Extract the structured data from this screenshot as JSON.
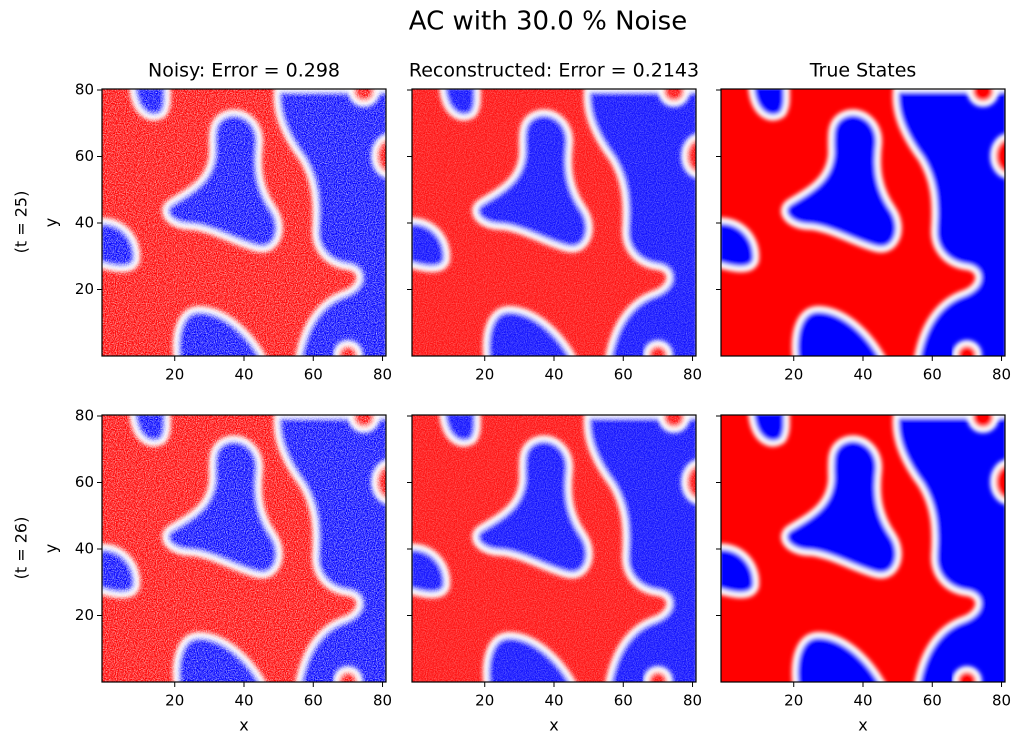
{
  "title": "AC with 30.0 % Noise",
  "row_labels": [
    "(t = 25)",
    "(t = 26)"
  ],
  "chart_data": [
    {
      "type": "heatmap",
      "title": "Noisy: Error = 0.298",
      "ylabel": "y",
      "xlim": [
        -1,
        81
      ],
      "ylim": [
        0,
        80.3
      ],
      "xticks": [
        20,
        40,
        60,
        80
      ],
      "yticks": [
        20,
        40,
        60,
        80
      ],
      "show_yticklabels": true
    },
    {
      "type": "heatmap",
      "title": "Reconstructed: Error = 0.2143",
      "xlim": [
        -1,
        81
      ],
      "ylim": [
        0,
        80.3
      ],
      "xticks": [
        20,
        40,
        60,
        80
      ],
      "yticks": [
        20,
        40,
        60,
        80
      ],
      "show_yticklabels": false
    },
    {
      "type": "heatmap",
      "title": "True States",
      "xlim": [
        -1,
        81
      ],
      "ylim": [
        0,
        80.3
      ],
      "xticks": [
        20,
        40,
        60,
        80
      ],
      "yticks": [
        20,
        40,
        60,
        80
      ],
      "show_yticklabels": false
    },
    {
      "type": "heatmap",
      "xlabel": "x",
      "ylabel": "y",
      "xlim": [
        -1,
        81
      ],
      "ylim": [
        0,
        80.3
      ],
      "xticks": [
        20,
        40,
        60,
        80
      ],
      "yticks": [
        20,
        40,
        60,
        80
      ],
      "show_yticklabels": true
    },
    {
      "type": "heatmap",
      "xlabel": "x",
      "xlim": [
        -1,
        81
      ],
      "ylim": [
        0,
        80.3
      ],
      "xticks": [
        20,
        40,
        60,
        80
      ],
      "yticks": [
        20,
        40,
        60,
        80
      ],
      "show_yticklabels": false
    },
    {
      "type": "heatmap",
      "xlabel": "x",
      "xlim": [
        -1,
        81
      ],
      "ylim": [
        0,
        80.3
      ],
      "xticks": [
        20,
        40,
        60,
        80
      ],
      "yticks": [
        20,
        40,
        60,
        80
      ],
      "show_yticklabels": false
    }
  ]
}
